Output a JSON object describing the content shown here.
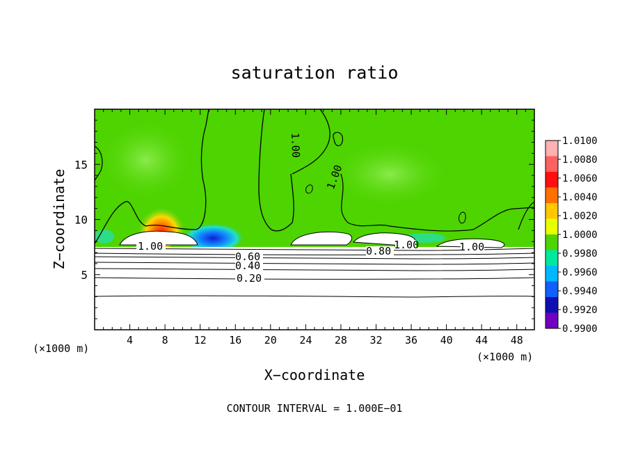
{
  "chart_data": {
    "type": "heatmap",
    "title": "saturation ratio",
    "xlabel": "X−coordinate",
    "ylabel": "Z−coordinate",
    "x_unit_left": "(×1000 m)",
    "x_unit_right": "(×1000 m)",
    "xlim": [
      0,
      50
    ],
    "ylim": [
      0,
      20
    ],
    "xticks": [
      4,
      8,
      12,
      16,
      20,
      24,
      28,
      32,
      36,
      40,
      44,
      48
    ],
    "yticks": [
      5,
      10,
      15
    ],
    "colorbar": {
      "levels": [
        "1.0100",
        "1.0080",
        "1.0060",
        "1.0040",
        "1.0020",
        "1.0000",
        "0.9980",
        "0.9960",
        "0.9940",
        "0.9920",
        "0.9900"
      ],
      "colors": [
        "#ffb0b0",
        "#ff6060",
        "#ff1010",
        "#ff7000",
        "#ffc800",
        "#e8ff00",
        "#4ed400",
        "#00e8a0",
        "#00b8ff",
        "#1060ff",
        "#1010b0",
        "#7000c0"
      ]
    },
    "contour_labels": [
      "1.00",
      "1.00",
      "1.00",
      "1.00",
      "1.00",
      "0.80",
      "0.60",
      "0.40",
      "0.20"
    ],
    "contour_levels": [
      1.0,
      0.8,
      0.6,
      0.4,
      0.2
    ],
    "footer": "CONTOUR INTERVAL = 1.000E−01"
  }
}
